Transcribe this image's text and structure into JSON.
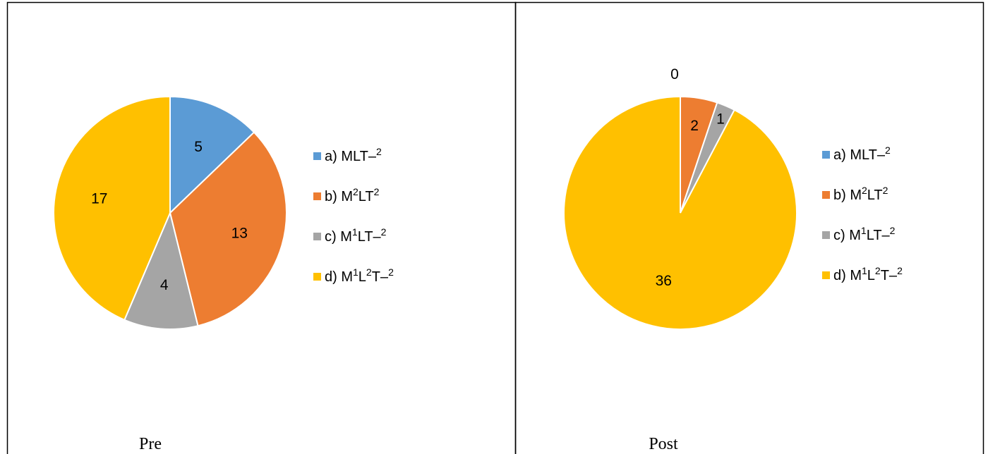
{
  "chart_data": [
    {
      "type": "pie",
      "title": "",
      "caption": "Pre",
      "categories": [
        "a) MLT–²",
        "b) M²LT²",
        "c) M¹LT–²",
        "d) M¹L²T–²"
      ],
      "legend_parts": [
        {
          "base": "a) MLT–",
          "sup": "2"
        },
        {
          "base": "b) M",
          "sup": "2",
          "rest": "LT",
          "sup2": "2"
        },
        {
          "base": "c) M",
          "sup": "1",
          "rest": "LT–",
          "sup2": "2"
        },
        {
          "base": "d) M",
          "sup": "1",
          "rest": "L",
          "sup2": "2",
          "rest2": "T–",
          "sup3": "2"
        }
      ],
      "values": [
        5,
        13,
        4,
        17
      ],
      "data_labels": [
        "5",
        "13",
        "4",
        "17"
      ],
      "colors": [
        "#5B9BD5",
        "#ED7D31",
        "#A5A5A5",
        "#FFC000"
      ],
      "legend_position": "right"
    },
    {
      "type": "pie",
      "title": "",
      "caption": "Post",
      "categories": [
        "a) MLT–²",
        "b) M²LT²",
        "c) M¹LT–²",
        "d) M¹L²T–²"
      ],
      "legend_parts": [
        {
          "base": "a) MLT–",
          "sup": "2"
        },
        {
          "base": "b) M",
          "sup": "2",
          "rest": "LT",
          "sup2": "2"
        },
        {
          "base": "c) M",
          "sup": "1",
          "rest": "LT–",
          "sup2": "2"
        },
        {
          "base": "d) M",
          "sup": "1",
          "rest": "L",
          "sup2": "2",
          "rest2": "T–",
          "sup3": "2"
        }
      ],
      "values": [
        0,
        2,
        1,
        36
      ],
      "data_labels": [
        "0",
        "2",
        "1",
        "36"
      ],
      "colors": [
        "#5B9BD5",
        "#ED7D31",
        "#A5A5A5",
        "#FFC000"
      ],
      "legend_position": "right"
    }
  ]
}
